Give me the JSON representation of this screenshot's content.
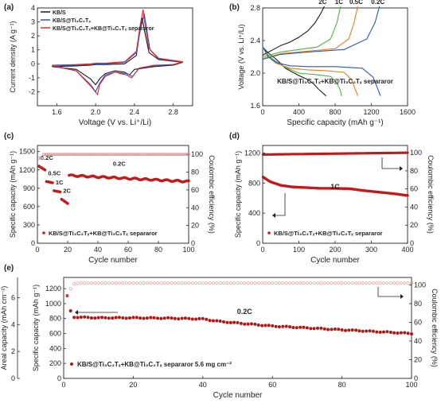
{
  "chart_data": [
    {
      "panel": "(a)",
      "type": "line",
      "xlabel": "Voltage (V vs. Li⁺/Li)",
      "ylabel": "Current density (A g⁻¹)",
      "xlim": [
        1.4,
        3.0
      ],
      "ylim": [
        -3,
        4
      ],
      "xticks": [
        "1.6",
        "2.0",
        "2.4",
        "2.8"
      ],
      "yticks": [
        "-2",
        "-1",
        "0",
        "1",
        "2",
        "3",
        "4"
      ],
      "legend": "top-left",
      "series": [
        {
          "name": "KB/S",
          "color": "#1a1a1a",
          "x": [
            1.55,
            1.8,
            1.95,
            2.0,
            2.1,
            2.3,
            2.42,
            2.46,
            2.48,
            2.5,
            2.55,
            2.65,
            2.9,
            2.8,
            2.6,
            2.4,
            2.35,
            2.3,
            2.2,
            2.1,
            2.05,
            2.0,
            1.95,
            1.8,
            1.55
          ],
          "y": [
            -0.2,
            -0.15,
            -0.1,
            -0.05,
            -0.05,
            0.0,
            0.6,
            2.6,
            3.3,
            2.5,
            0.8,
            0.3,
            0.1,
            -0.1,
            -0.2,
            -0.4,
            -0.8,
            -0.6,
            -0.5,
            -0.7,
            -1.0,
            -1.5,
            -1.1,
            -0.4,
            -0.2
          ]
        },
        {
          "name": "KB/S@Ti₃C₂Tₓ",
          "color": "#2b58c8",
          "x": [
            1.55,
            1.8,
            1.95,
            2.0,
            2.1,
            2.3,
            2.42,
            2.46,
            2.5,
            2.52,
            2.56,
            2.65,
            2.9,
            2.8,
            2.6,
            2.45,
            2.38,
            2.32,
            2.2,
            2.1,
            2.04,
            2.0,
            1.95,
            1.8,
            1.55
          ],
          "y": [
            -0.15,
            -0.1,
            -0.05,
            0.0,
            0.0,
            0.1,
            0.8,
            2.4,
            3.6,
            2.8,
            1.0,
            0.35,
            0.1,
            -0.05,
            -0.15,
            -0.3,
            -0.9,
            -0.7,
            -0.6,
            -0.8,
            -1.4,
            -2.0,
            -1.5,
            -0.5,
            -0.15
          ]
        },
        {
          "name": "KB/S@Ti₃C₂Tₓ+KB@Ti₃C₂Tₓ separaror",
          "color": "#e0262d",
          "x": [
            1.55,
            1.8,
            1.95,
            2.0,
            2.1,
            2.3,
            2.42,
            2.46,
            2.49,
            2.5,
            2.55,
            2.65,
            2.9,
            2.8,
            2.6,
            2.45,
            2.37,
            2.32,
            2.2,
            2.1,
            2.04,
            2.02,
            1.95,
            1.8,
            1.55
          ],
          "y": [
            -0.1,
            -0.05,
            0.0,
            0.05,
            0.05,
            0.15,
            0.9,
            2.8,
            3.9,
            3.2,
            1.1,
            0.4,
            0.15,
            -0.05,
            -0.1,
            -0.3,
            -1.0,
            -0.8,
            -0.6,
            -0.9,
            -1.5,
            -2.2,
            -1.6,
            -0.5,
            -0.1
          ]
        }
      ]
    },
    {
      "panel": "(b)",
      "type": "line",
      "xlabel": "Specific capacity (mAh g⁻¹)",
      "ylabel": "Voltage (V vs. Li⁺/Li)",
      "xlim": [
        0,
        1600
      ],
      "ylim": [
        1.6,
        2.8
      ],
      "xticks": [
        "0",
        "400",
        "800",
        "1200",
        "1600"
      ],
      "yticks": [
        "1.6",
        "2.0",
        "2.4",
        "2.8"
      ],
      "annotation": "KB/S@Ti₃C₂Tₓ+KB@Ti₃C₂Tₓ separaror",
      "series": [
        {
          "name": "2C",
          "color": "#1a1a1a",
          "discharge": {
            "x": [
              0,
              60,
              150,
              250,
              400,
              500,
              560,
              620,
              680,
              700
            ],
            "y": [
              2.32,
              2.25,
              2.17,
              2.06,
              1.97,
              1.92,
              1.87,
              1.8,
              1.74,
              1.72
            ]
          },
          "charge": {
            "x": [
              0,
              100,
              200,
              300,
              400,
              500,
              580,
              640,
              680
            ],
            "y": [
              2.22,
              2.28,
              2.34,
              2.38,
              2.44,
              2.52,
              2.62,
              2.73,
              2.82
            ]
          }
        },
        {
          "name": "1C",
          "color": "#46b83a",
          "discharge": {
            "x": [
              0,
              60,
              150,
              250,
              400,
              600,
              750,
              820,
              860,
              870
            ],
            "y": [
              2.32,
              2.22,
              2.14,
              2.07,
              2.0,
              1.98,
              1.96,
              1.88,
              1.78,
              1.72
            ]
          },
          "charge": {
            "x": [
              0,
              200,
              400,
              600,
              750,
              820,
              860
            ],
            "y": [
              2.2,
              2.26,
              2.29,
              2.32,
              2.42,
              2.62,
              2.82
            ]
          }
        },
        {
          "name": "0.5C",
          "color": "#ef7b22",
          "discharge": {
            "x": [
              0,
              60,
              150,
              300,
              500,
              700,
              900,
              980,
              1030,
              1050
            ],
            "y": [
              2.32,
              2.2,
              2.12,
              2.06,
              2.04,
              2.03,
              2.01,
              1.92,
              1.78,
              1.72
            ]
          },
          "charge": {
            "x": [
              0,
              200,
              500,
              800,
              950,
              1010,
              1050
            ],
            "y": [
              2.18,
              2.24,
              2.27,
              2.3,
              2.42,
              2.62,
              2.82
            ]
          }
        },
        {
          "name": "0.2C",
          "color": "#2b58c8",
          "discharge": {
            "x": [
              0,
              60,
              150,
              300,
              500,
              800,
              1100,
              1220,
              1280,
              1300
            ],
            "y": [
              2.33,
              2.2,
              2.13,
              2.09,
              2.08,
              2.08,
              2.06,
              1.95,
              1.78,
              1.72
            ]
          },
          "charge": {
            "x": [
              0,
              200,
              500,
              900,
              1150,
              1240,
              1290
            ],
            "y": [
              2.17,
              2.23,
              2.26,
              2.29,
              2.42,
              2.62,
              2.82
            ]
          }
        }
      ]
    },
    {
      "panel": "(c)",
      "type": "scatter",
      "xlabel": "Cycle number",
      "ylabel": "Specific capacity (mAh g⁻¹)",
      "y2label": "Coulombic efficiency (%)",
      "xlim": [
        0,
        100
      ],
      "ylim": [
        0,
        1600
      ],
      "y2lim": [
        0,
        110
      ],
      "xticks": [
        "0",
        "20",
        "40",
        "60",
        "80",
        "100"
      ],
      "yticks": [
        "0",
        "300",
        "600",
        "900",
        "1200",
        "1500"
      ],
      "y2ticks": [
        "0",
        "20",
        "40",
        "60",
        "80",
        "100"
      ],
      "legend": "bottom-left",
      "series": [
        {
          "name": "KB/S@Ti₃C₂Tₓ+KB@Ti₃C₂Tₓ separaror",
          "color": "#c41a1a",
          "rate_steps": [
            {
              "label": "0.2C",
              "x": [
                1,
                5
              ],
              "y": [
                1260,
                1200
              ]
            },
            {
              "label": "0.5C",
              "x": [
                6,
                10
              ],
              "y": [
                1010,
                990
              ]
            },
            {
              "label": "1C",
              "x": [
                11,
                15
              ],
              "y": [
                860,
                840
              ]
            },
            {
              "label": "2C",
              "x": [
                16,
                20
              ],
              "y": [
                720,
                650
              ]
            },
            {
              "label": "0.2C",
              "x": [
                21,
                100
              ],
              "y": [
                1110,
                1010
              ]
            }
          ]
        },
        {
          "name": "Coulombic efficiency",
          "color": "#e88888",
          "x": [
            1,
            100
          ],
          "y": [
            96,
            100
          ]
        }
      ]
    },
    {
      "panel": "(d)",
      "type": "scatter",
      "xlabel": "Cycle number",
      "ylabel": "Specific capacity (mAh g⁻¹)",
      "y2label": "Coulombic efficiency (%)",
      "xlim": [
        0,
        400
      ],
      "ylim": [
        0,
        1300
      ],
      "y2lim": [
        0,
        108
      ],
      "xticks": [
        "0",
        "100",
        "200",
        "300",
        "400"
      ],
      "yticks": [
        "0",
        "400",
        "800",
        "1200"
      ],
      "y2ticks": [
        "0",
        "20",
        "40",
        "60",
        "80",
        "100"
      ],
      "annotation": "1C",
      "series": [
        {
          "name": "KB/S@Ti₃C₂Tₓ+KB@Ti₃C₂Tₓ separaror",
          "color": "#c41a1a",
          "x": [
            1,
            20,
            50,
            80,
            120,
            160,
            200,
            240,
            280,
            320,
            360,
            400
          ],
          "y": [
            880,
            820,
            770,
            750,
            740,
            730,
            730,
            725,
            700,
            680,
            660,
            635
          ]
        },
        {
          "name": "Coulombic efficiency",
          "color": "#c41a1a",
          "x": [
            1,
            400
          ],
          "y": [
            98,
            100
          ]
        }
      ]
    },
    {
      "panel": "(e)",
      "type": "scatter",
      "xlabel": "Cycle number",
      "ylabel": "Specific capacity (mAh g⁻¹)",
      "ylabel_outer": "Areal capacity (mAh cm⁻²)",
      "y2label": "Coulombic efficiency (%)",
      "xlim": [
        0,
        100
      ],
      "ylim": [
        0,
        1350
      ],
      "y2lim": [
        0,
        108
      ],
      "xticks": [
        "0",
        "20",
        "40",
        "60",
        "80",
        "100"
      ],
      "yticks": [
        "0",
        "200",
        "400",
        "600",
        "800",
        "1000",
        "1200"
      ],
      "y2ticks": [
        "0",
        "20",
        "40",
        "60",
        "80",
        "100"
      ],
      "outer_ticks": [
        "0",
        "2",
        "4",
        "6"
      ],
      "annotation": "0.2C",
      "series": [
        {
          "name": "KB/S@Ti₃C₂Tₓ+KB@Ti₃C₂Tₓ separaror 5.6 mg cm⁻²",
          "color": "#b01818",
          "x": [
            1,
            2,
            3,
            10,
            20,
            30,
            40,
            45,
            60,
            80,
            100
          ],
          "y": [
            1100,
            900,
            820,
            810,
            810,
            805,
            795,
            760,
            700,
            650,
            600
          ]
        },
        {
          "name": "Coulombic efficiency",
          "color": "#e88888",
          "x": [
            1,
            2,
            3,
            5,
            100
          ],
          "y": [
            88,
            96,
            101,
            102,
            102
          ]
        }
      ]
    }
  ]
}
